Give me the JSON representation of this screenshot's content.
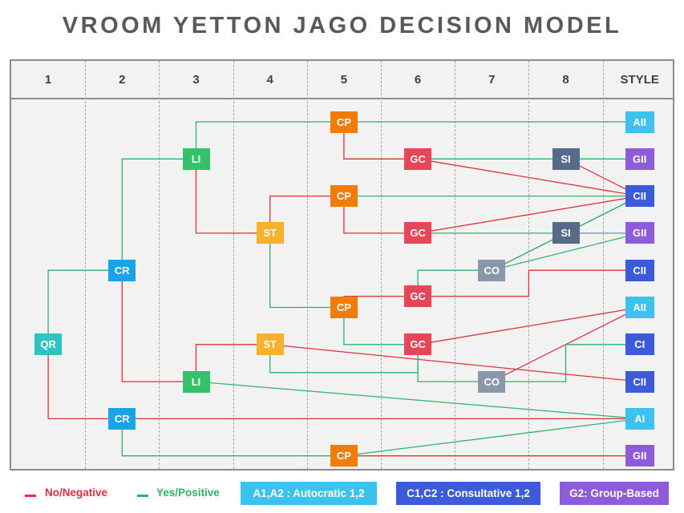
{
  "title": "VROOM YETTON JAGO DECISION MODEL",
  "columns": [
    "1",
    "2",
    "3",
    "4",
    "5",
    "6",
    "7",
    "8",
    "STYLE"
  ],
  "colors": {
    "no_negative": "#e0303a",
    "yes_positive": "#2fb36a",
    "teal": "#2ec4c4",
    "blue": "#1ba3e8",
    "green": "#33c26a",
    "orange": "#f07d0a",
    "yellow": "#f7b12b",
    "red": "#e84558",
    "gray": "#8a97aa",
    "slate": "#566a8a",
    "sky": "#3cc2ee",
    "indigo": "#3b5bdb",
    "purple": "#8e5cd9"
  },
  "nodes": [
    {
      "id": "qr",
      "label": "QR",
      "col": 1,
      "row": 7,
      "color": "teal"
    },
    {
      "id": "cr_top",
      "label": "CR",
      "col": 2,
      "row": 5,
      "color": "blue"
    },
    {
      "id": "cr_bot",
      "label": "CR",
      "col": 2,
      "row": 9,
      "color": "blue"
    },
    {
      "id": "li_top",
      "label": "LI",
      "col": 3,
      "row": 2,
      "color": "green"
    },
    {
      "id": "li_bot",
      "label": "LI",
      "col": 3,
      "row": 8,
      "color": "green"
    },
    {
      "id": "st_top",
      "label": "ST",
      "col": 4,
      "row": 4,
      "color": "yellow"
    },
    {
      "id": "st_bot",
      "label": "ST",
      "col": 4,
      "row": 7,
      "color": "yellow"
    },
    {
      "id": "cp1",
      "label": "CP",
      "col": 5,
      "row": 1,
      "color": "orange"
    },
    {
      "id": "cp2",
      "label": "CP",
      "col": 5,
      "row": 3,
      "color": "orange"
    },
    {
      "id": "cp3",
      "label": "CP",
      "col": 5,
      "row": 6,
      "color": "orange"
    },
    {
      "id": "cp4",
      "label": "CP",
      "col": 5,
      "row": 10,
      "color": "orange"
    },
    {
      "id": "gc1",
      "label": "GC",
      "col": 6,
      "row": 2,
      "color": "red"
    },
    {
      "id": "gc2",
      "label": "GC",
      "col": 6,
      "row": 4,
      "color": "red"
    },
    {
      "id": "gc3",
      "label": "GC",
      "col": 6,
      "row": 5.7,
      "color": "red"
    },
    {
      "id": "gc4",
      "label": "GC",
      "col": 6,
      "row": 7,
      "color": "red"
    },
    {
      "id": "co1",
      "label": "CO",
      "col": 7,
      "row": 5,
      "color": "gray"
    },
    {
      "id": "co2",
      "label": "CO",
      "col": 7,
      "row": 8,
      "color": "gray"
    },
    {
      "id": "si1",
      "label": "SI",
      "col": 8,
      "row": 2,
      "color": "slate"
    },
    {
      "id": "si2",
      "label": "SI",
      "col": 8,
      "row": 4,
      "color": "slate"
    },
    {
      "id": "s1",
      "label": "AII",
      "col": 9,
      "row": 1,
      "color": "sky"
    },
    {
      "id": "s2",
      "label": "GII",
      "col": 9,
      "row": 2,
      "color": "purple"
    },
    {
      "id": "s3",
      "label": "CII",
      "col": 9,
      "row": 3,
      "color": "indigo"
    },
    {
      "id": "s4",
      "label": "GII",
      "col": 9,
      "row": 4,
      "color": "purple"
    },
    {
      "id": "s5",
      "label": "CII",
      "col": 9,
      "row": 5,
      "color": "indigo"
    },
    {
      "id": "s6",
      "label": "AII",
      "col": 9,
      "row": 6,
      "color": "sky"
    },
    {
      "id": "s7",
      "label": "CI",
      "col": 9,
      "row": 7,
      "color": "indigo"
    },
    {
      "id": "s8",
      "label": "CII",
      "col": 9,
      "row": 8,
      "color": "indigo"
    },
    {
      "id": "s9",
      "label": "AI",
      "col": 9,
      "row": 9,
      "color": "sky"
    },
    {
      "id": "s10",
      "label": "GII",
      "col": 9,
      "row": 10,
      "color": "purple"
    }
  ],
  "edges": [
    {
      "from": "qr",
      "to": "cr_top",
      "kind": "yes",
      "route": "elbow"
    },
    {
      "from": "qr",
      "to": "cr_bot",
      "kind": "no",
      "route": "elbow"
    },
    {
      "from": "cr_top",
      "to": "li_top",
      "kind": "yes",
      "route": "elbow"
    },
    {
      "from": "cr_top",
      "to": "li_bot",
      "kind": "no",
      "route": "elbow"
    },
    {
      "from": "li_top",
      "to": "cp1",
      "kind": "yes",
      "route": "elbow"
    },
    {
      "from": "li_top",
      "to": "st_top",
      "kind": "no",
      "route": "elbow"
    },
    {
      "from": "cp1",
      "to": "s1",
      "kind": "yes",
      "route": "straight"
    },
    {
      "from": "cp1",
      "to": "gc1",
      "kind": "no",
      "route": "elbow"
    },
    {
      "from": "gc1",
      "to": "si1",
      "kind": "yes",
      "route": "step"
    },
    {
      "from": "gc1",
      "to": "s3",
      "kind": "no",
      "route": "straight"
    },
    {
      "from": "si1",
      "to": "s2",
      "kind": "yes",
      "route": "straight"
    },
    {
      "from": "si1",
      "to": "s3",
      "kind": "no",
      "route": "straight"
    },
    {
      "from": "st_top",
      "to": "cp2",
      "kind": "no",
      "route": "elbow"
    },
    {
      "from": "st_top",
      "to": "cp3",
      "kind": "yes",
      "route": "elbow"
    },
    {
      "from": "cp2",
      "to": "s3",
      "kind": "yes",
      "route": "straight"
    },
    {
      "from": "cp2",
      "to": "gc2",
      "kind": "no",
      "route": "elbow"
    },
    {
      "from": "gc2",
      "to": "si2",
      "kind": "yes",
      "route": "straight"
    },
    {
      "from": "gc2",
      "to": "s3",
      "kind": "no",
      "route": "straight"
    },
    {
      "from": "si2",
      "to": "s3",
      "kind": "yes",
      "route": "straight"
    },
    {
      "from": "si2",
      "to": "s4",
      "kind": "blue",
      "route": "straight"
    },
    {
      "from": "si2",
      "to": "co1",
      "kind": "no",
      "route": "straight"
    },
    {
      "from": "co1",
      "to": "s3",
      "kind": "yes",
      "route": "straight"
    },
    {
      "from": "co1",
      "to": "s4",
      "kind": "yes",
      "route": "straight"
    },
    {
      "from": "gc3",
      "to": "co1",
      "kind": "yes",
      "route": "elbow"
    },
    {
      "from": "gc3",
      "to": "s5",
      "kind": "no",
      "route": "step"
    },
    {
      "from": "cp3",
      "to": "gc3",
      "kind": "no",
      "route": "elbow"
    },
    {
      "from": "cp3",
      "to": "gc4",
      "kind": "yes",
      "route": "elbow"
    },
    {
      "from": "gc4",
      "to": "s6",
      "kind": "no",
      "route": "straight"
    },
    {
      "from": "gc4",
      "to": "co2",
      "kind": "yes",
      "route": "elbow"
    },
    {
      "from": "co2",
      "to": "s6",
      "kind": "no",
      "route": "straight"
    },
    {
      "from": "co2",
      "to": "s7",
      "kind": "yes",
      "route": "step"
    },
    {
      "from": "li_bot",
      "to": "st_bot",
      "kind": "no",
      "route": "elbow"
    },
    {
      "from": "li_bot",
      "to": "s9",
      "kind": "yes",
      "route": "straight"
    },
    {
      "from": "st_bot",
      "to": "s8",
      "kind": "no",
      "route": "straight"
    },
    {
      "from": "st_bot",
      "to": "gc4",
      "kind": "yes",
      "route": "under"
    },
    {
      "from": "cr_bot",
      "to": "s9",
      "kind": "no",
      "route": "straight"
    },
    {
      "from": "cr_bot",
      "to": "cp4",
      "kind": "yes",
      "route": "elbow"
    },
    {
      "from": "cp4",
      "to": "s9",
      "kind": "yes",
      "route": "straight"
    },
    {
      "from": "cp4",
      "to": "s10",
      "kind": "no",
      "route": "straight"
    }
  ],
  "legend": {
    "no_label": "No/Negative",
    "yes_label": "Yes/Positive",
    "boxes": [
      {
        "label": "A1,A2 : Autocratic 1,2",
        "color": "sky"
      },
      {
        "label": "C1,C2 : Consultative 1,2",
        "color": "indigo"
      },
      {
        "label": "G2: Group-Based",
        "color": "purple"
      }
    ]
  }
}
